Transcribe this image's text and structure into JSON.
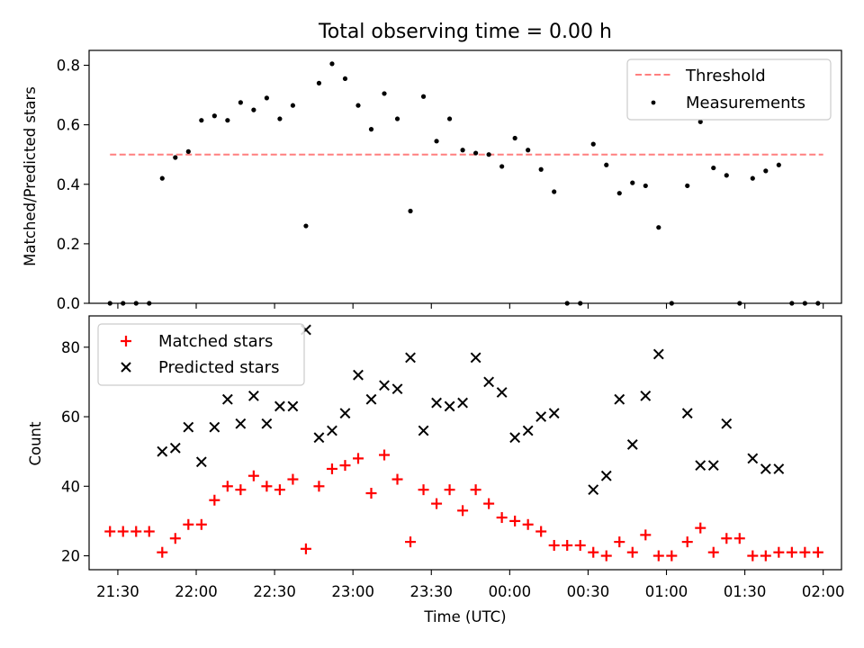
{
  "figure": {
    "title": "Total observing time = 0.00 h"
  },
  "chart_data": [
    {
      "type": "scatter",
      "ylabel": "Matched/Predicted stars",
      "xlabel": "",
      "ylim": [
        0.0,
        0.85
      ],
      "yticks": [
        0.0,
        0.2,
        0.4,
        0.6,
        0.8
      ],
      "legend_position": "top-right",
      "grid": false,
      "threshold": {
        "name": "Threshold",
        "value": 0.5,
        "x_range": [
          "21:27",
          "02:00"
        ],
        "color": "#ff7f7f"
      },
      "series": [
        {
          "name": "Measurements",
          "marker": "dot",
          "color": "#000000",
          "points": [
            [
              "21:27",
              0.0
            ],
            [
              "21:32",
              0.0
            ],
            [
              "21:37",
              0.0
            ],
            [
              "21:42",
              0.0
            ],
            [
              "21:47",
              0.42
            ],
            [
              "21:52",
              0.49
            ],
            [
              "21:57",
              0.51
            ],
            [
              "22:02",
              0.615
            ],
            [
              "22:07",
              0.63
            ],
            [
              "22:12",
              0.615
            ],
            [
              "22:17",
              0.675
            ],
            [
              "22:22",
              0.65
            ],
            [
              "22:27",
              0.69
            ],
            [
              "22:32",
              0.62
            ],
            [
              "22:37",
              0.665
            ],
            [
              "22:42",
              0.26
            ],
            [
              "22:47",
              0.74
            ],
            [
              "22:52",
              0.805
            ],
            [
              "22:57",
              0.755
            ],
            [
              "23:02",
              0.665
            ],
            [
              "23:07",
              0.585
            ],
            [
              "23:12",
              0.705
            ],
            [
              "23:17",
              0.62
            ],
            [
              "23:22",
              0.31
            ],
            [
              "23:27",
              0.695
            ],
            [
              "23:32",
              0.545
            ],
            [
              "23:37",
              0.62
            ],
            [
              "23:42",
              0.515
            ],
            [
              "23:47",
              0.505
            ],
            [
              "23:52",
              0.5
            ],
            [
              "23:57",
              0.46
            ],
            [
              "00:02",
              0.555
            ],
            [
              "00:07",
              0.515
            ],
            [
              "00:12",
              0.45
            ],
            [
              "00:17",
              0.375
            ],
            [
              "00:22",
              0.0
            ],
            [
              "00:27",
              0.0
            ],
            [
              "00:32",
              0.535
            ],
            [
              "00:37",
              0.465
            ],
            [
              "00:42",
              0.37
            ],
            [
              "00:47",
              0.405
            ],
            [
              "00:52",
              0.395
            ],
            [
              "00:57",
              0.255
            ],
            [
              "01:02",
              0.0
            ],
            [
              "01:08",
              0.395
            ],
            [
              "01:13",
              0.61
            ],
            [
              "01:18",
              0.455
            ],
            [
              "01:23",
              0.43
            ],
            [
              "01:28",
              0.0
            ],
            [
              "01:33",
              0.42
            ],
            [
              "01:38",
              0.445
            ],
            [
              "01:43",
              0.465
            ],
            [
              "01:48",
              0.0
            ],
            [
              "01:53",
              0.0
            ],
            [
              "01:58",
              0.0
            ]
          ]
        }
      ]
    },
    {
      "type": "scatter",
      "ylabel": "Count",
      "xlabel": "Time (UTC)",
      "ylim": [
        16,
        89
      ],
      "yticks": [
        20,
        40,
        60,
        80
      ],
      "xlim": [
        "21:19",
        "02:07"
      ],
      "xticks": [
        "21:30",
        "22:00",
        "22:30",
        "23:00",
        "23:30",
        "00:00",
        "00:30",
        "01:00",
        "01:30",
        "02:00"
      ],
      "legend_position": "top-left",
      "grid": false,
      "series": [
        {
          "name": "Matched stars",
          "marker": "plus",
          "color": "#ff0000",
          "points": [
            [
              "21:27",
              27
            ],
            [
              "21:32",
              27
            ],
            [
              "21:37",
              27
            ],
            [
              "21:42",
              27
            ],
            [
              "21:47",
              21
            ],
            [
              "21:52",
              25
            ],
            [
              "21:57",
              29
            ],
            [
              "22:02",
              29
            ],
            [
              "22:07",
              36
            ],
            [
              "22:12",
              40
            ],
            [
              "22:17",
              39
            ],
            [
              "22:22",
              43
            ],
            [
              "22:27",
              40
            ],
            [
              "22:32",
              39
            ],
            [
              "22:37",
              42
            ],
            [
              "22:42",
              22
            ],
            [
              "22:47",
              40
            ],
            [
              "22:52",
              45
            ],
            [
              "22:57",
              46
            ],
            [
              "23:02",
              48
            ],
            [
              "23:07",
              38
            ],
            [
              "23:12",
              49
            ],
            [
              "23:17",
              42
            ],
            [
              "23:22",
              24
            ],
            [
              "23:27",
              39
            ],
            [
              "23:32",
              35
            ],
            [
              "23:37",
              39
            ],
            [
              "23:42",
              33
            ],
            [
              "23:47",
              39
            ],
            [
              "23:52",
              35
            ],
            [
              "23:57",
              31
            ],
            [
              "00:02",
              30
            ],
            [
              "00:07",
              29
            ],
            [
              "00:12",
              27
            ],
            [
              "00:17",
              23
            ],
            [
              "00:22",
              23
            ],
            [
              "00:27",
              23
            ],
            [
              "00:32",
              21
            ],
            [
              "00:37",
              20
            ],
            [
              "00:42",
              24
            ],
            [
              "00:47",
              21
            ],
            [
              "00:52",
              26
            ],
            [
              "00:57",
              20
            ],
            [
              "01:02",
              20
            ],
            [
              "01:08",
              24
            ],
            [
              "01:13",
              28
            ],
            [
              "01:18",
              21
            ],
            [
              "01:23",
              25
            ],
            [
              "01:28",
              25
            ],
            [
              "01:33",
              20
            ],
            [
              "01:38",
              20
            ],
            [
              "01:43",
              21
            ],
            [
              "01:48",
              21
            ],
            [
              "01:53",
              21
            ],
            [
              "01:58",
              21
            ]
          ]
        },
        {
          "name": "Predicted stars",
          "marker": "x",
          "color": "#000000",
          "points": [
            [
              "21:47",
              50
            ],
            [
              "21:52",
              51
            ],
            [
              "21:57",
              57
            ],
            [
              "22:02",
              47
            ],
            [
              "22:07",
              57
            ],
            [
              "22:12",
              65
            ],
            [
              "22:17",
              58
            ],
            [
              "22:22",
              66
            ],
            [
              "22:27",
              58
            ],
            [
              "22:32",
              63
            ],
            [
              "22:37",
              63
            ],
            [
              "22:42",
              85
            ],
            [
              "22:47",
              54
            ],
            [
              "22:52",
              56
            ],
            [
              "22:57",
              61
            ],
            [
              "23:02",
              72
            ],
            [
              "23:07",
              65
            ],
            [
              "23:12",
              69
            ],
            [
              "23:17",
              68
            ],
            [
              "23:22",
              77
            ],
            [
              "23:27",
              56
            ],
            [
              "23:32",
              64
            ],
            [
              "23:37",
              63
            ],
            [
              "23:42",
              64
            ],
            [
              "23:47",
              77
            ],
            [
              "23:52",
              70
            ],
            [
              "23:57",
              67
            ],
            [
              "00:02",
              54
            ],
            [
              "00:07",
              56
            ],
            [
              "00:12",
              60
            ],
            [
              "00:17",
              61
            ],
            [
              "00:32",
              39
            ],
            [
              "00:37",
              43
            ],
            [
              "00:42",
              65
            ],
            [
              "00:47",
              52
            ],
            [
              "00:52",
              66
            ],
            [
              "00:57",
              78
            ],
            [
              "01:08",
              61
            ],
            [
              "01:13",
              46
            ],
            [
              "01:18",
              46
            ],
            [
              "01:23",
              58
            ],
            [
              "01:33",
              48
            ],
            [
              "01:38",
              45
            ],
            [
              "01:43",
              45
            ]
          ]
        }
      ]
    }
  ]
}
